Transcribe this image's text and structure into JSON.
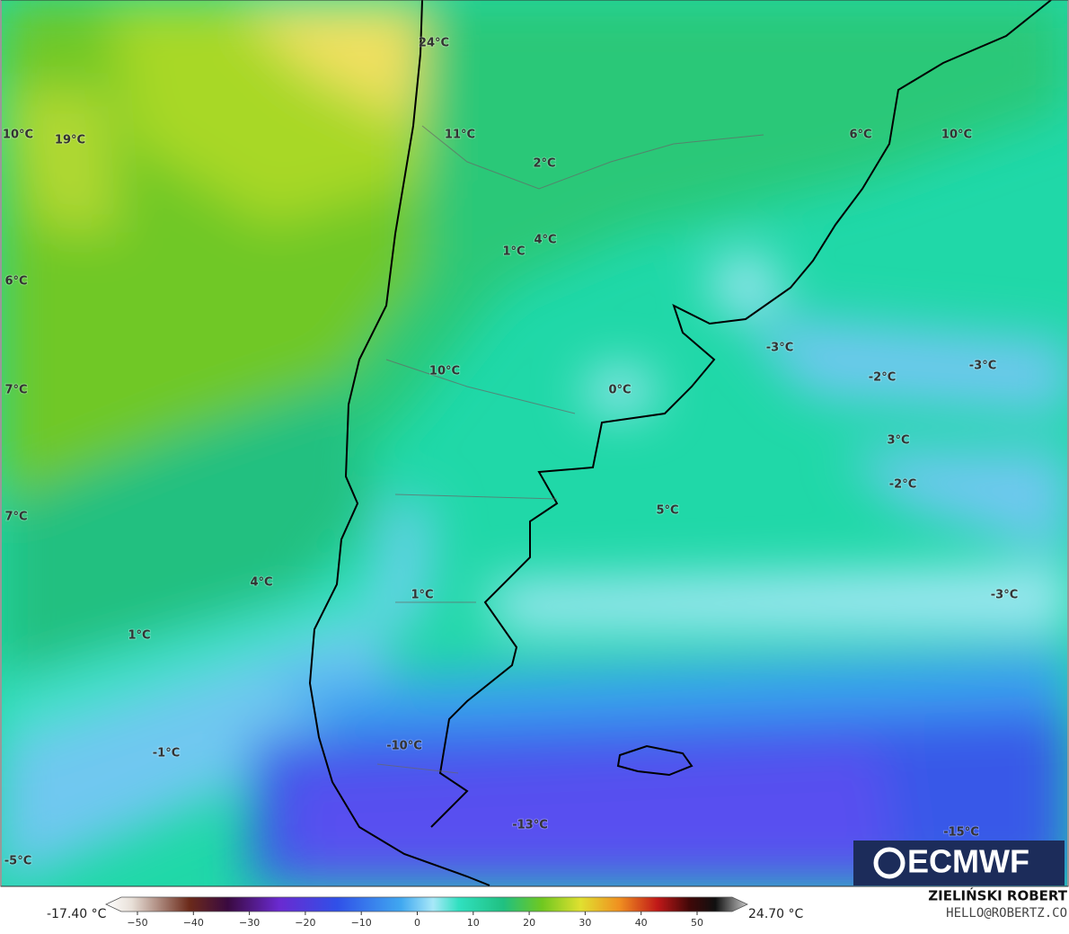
{
  "map": {
    "labels": [
      "24°C",
      "10°C",
      "19°C",
      "11°C",
      "6°C",
      "10°C",
      "2°C",
      "1°C",
      "4°C",
      "6°C",
      "-3°C",
      "-3°C",
      "-2°C",
      "10°C",
      "0°C",
      "7°C",
      "3°C",
      "-2°C",
      "5°C",
      "7°C",
      "4°C",
      "1°C",
      "-3°C",
      "1°C",
      "-1°C",
      "-10°C",
      "-13°C",
      "-15°C",
      "-5°C"
    ]
  },
  "logo": "ECMWF",
  "colorbar": {
    "min_label": "-17.40 °C",
    "max_label": "24.70 °C",
    "ticks": [
      "−50",
      "−40",
      "−30",
      "−20",
      "−10",
      "0",
      "10",
      "20",
      "30",
      "40",
      "50"
    ]
  },
  "credits": {
    "name": "ZIELIŃSKI ROBERT",
    "email": "HELLO@ROBERTZ.CO"
  }
}
